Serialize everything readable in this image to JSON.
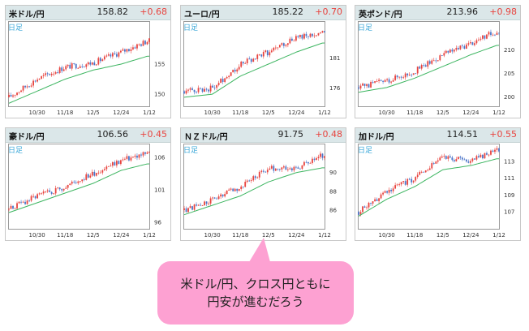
{
  "chart_data": [
    {
      "type": "line",
      "title": "米ドル/円",
      "value": "158.82",
      "change": "+0.68",
      "period": "日足",
      "xticks": [
        "10/30",
        "11/18",
        "12/5",
        "12/24",
        "1/12"
      ],
      "yticks": [
        "155",
        "150"
      ],
      "ylim": [
        148,
        162
      ],
      "x": [
        "10/18",
        "10/30",
        "11/18",
        "12/5",
        "12/24",
        "1/12"
      ],
      "series": [
        {
          "values": [
            149.5,
            152.5,
            154.5,
            155.2,
            157.0,
            158.8
          ]
        },
        {
          "values": [
            148.5,
            150.5,
            152.5,
            154.0,
            155.0,
            156.3
          ]
        }
      ]
    },
    {
      "type": "line",
      "title": "ユーロ/円",
      "value": "185.22",
      "change": "+0.70",
      "period": "日足",
      "xticks": [
        "10/30",
        "11/18",
        "12/5",
        "12/24",
        "1/12"
      ],
      "yticks": [
        "181",
        "176"
      ],
      "ylim": [
        173,
        187
      ],
      "x": [
        "10/18",
        "10/30",
        "11/18",
        "12/5",
        "12/24",
        "1/12"
      ],
      "series": [
        {
          "values": [
            175.5,
            176.0,
            180.0,
            182.0,
            184.5,
            185.2
          ]
        },
        {
          "values": [
            174.5,
            175.0,
            178.0,
            180.0,
            182.0,
            183.5
          ]
        }
      ]
    },
    {
      "type": "line",
      "title": "英ポンド/円",
      "value": "213.96",
      "change": "+0.98",
      "period": "日足",
      "xticks": [
        "10/30",
        "11/18",
        "12/5",
        "12/24",
        "1/12"
      ],
      "yticks": [
        "210",
        "205",
        "200"
      ],
      "ylim": [
        198,
        216
      ],
      "x": [
        "10/18",
        "10/30",
        "11/18",
        "12/5",
        "12/24",
        "1/12"
      ],
      "series": [
        {
          "values": [
            202.0,
            203.5,
            205.5,
            209.0,
            211.5,
            214.0
          ]
        },
        {
          "values": [
            201.0,
            202.0,
            204.0,
            206.5,
            209.0,
            211.0
          ]
        }
      ]
    },
    {
      "type": "line",
      "title": "豪ドル/円",
      "value": "106.56",
      "change": "+0.45",
      "period": "日足",
      "xticks": [
        "10/30",
        "11/18",
        "12/5",
        "12/24",
        "1/12"
      ],
      "yticks": [
        "106",
        "101",
        "96"
      ],
      "ylim": [
        95,
        108
      ],
      "x": [
        "10/18",
        "10/30",
        "11/18",
        "12/5",
        "12/24",
        "1/12"
      ],
      "series": [
        {
          "values": [
            98.0,
            100.0,
            101.5,
            103.5,
            105.5,
            106.6
          ]
        },
        {
          "values": [
            97.5,
            99.0,
            100.5,
            102.0,
            104.0,
            105.0
          ]
        }
      ]
    },
    {
      "type": "line",
      "title": "ＮＺドル/円",
      "value": "91.75",
      "change": "+0.48",
      "period": "日足",
      "xticks": [
        "10/30",
        "11/18",
        "12/5",
        "12/24",
        "1/12"
      ],
      "yticks": [
        "90",
        "88",
        "86"
      ],
      "ylim": [
        84,
        93
      ],
      "x": [
        "10/18",
        "10/30",
        "11/18",
        "12/5",
        "12/24",
        "1/12"
      ],
      "series": [
        {
          "values": [
            86.0,
            87.0,
            88.5,
            90.5,
            90.5,
            91.8
          ]
        },
        {
          "values": [
            85.5,
            86.5,
            87.5,
            89.0,
            90.0,
            90.5
          ]
        }
      ]
    },
    {
      "type": "line",
      "title": "加ドル/円",
      "value": "114.51",
      "change": "+0.55",
      "period": "日足",
      "xticks": [
        "10/30",
        "11/18",
        "12/5",
        "12/24",
        "1/12"
      ],
      "yticks": [
        "113",
        "111",
        "109",
        "107"
      ],
      "ylim": [
        105,
        115
      ],
      "x": [
        "10/18",
        "10/30",
        "11/18",
        "12/5",
        "12/24",
        "1/12"
      ],
      "series": [
        {
          "values": [
            107.0,
            109.5,
            111.0,
            113.5,
            113.0,
            114.5
          ]
        },
        {
          "values": [
            106.5,
            108.5,
            110.0,
            112.0,
            112.5,
            113.3
          ]
        }
      ]
    }
  ],
  "callout": {
    "line1": "米ドル/円、クロス円ともに",
    "line2": "円安が進むだろう"
  },
  "colors": {
    "up": "#e8433e",
    "down": "#4a74c9",
    "ma": "#3cb560",
    "header": "#dbe7e9",
    "callout": "#fda1d2"
  }
}
